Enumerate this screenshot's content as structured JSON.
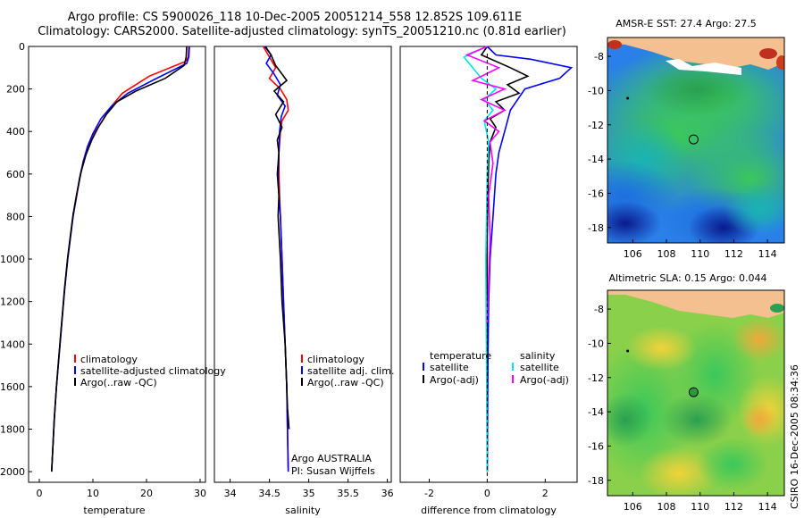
{
  "title": {
    "line1": "Argo profile: CS 5900026_118 10-Dec-2005 20051214_558 12.852S 109.611E",
    "line2": "Climatology: CARS2000. Satellite-adjusted climatology: synTS_20051210.nc (0.81d earlier)"
  },
  "side_label": "CSIRO 16-Dec-2005 08:34:36",
  "colors": {
    "climatology": "#ff0000",
    "satellite": "#0000ff",
    "argo": "#000000",
    "sal_satellite": "#00e5ee",
    "sal_argo": "#ff00ff",
    "land": "#f5c090"
  },
  "chart_data": [
    {
      "type": "line",
      "panel": "temperature",
      "xlabel": "temperature",
      "ylabel": "",
      "xlim": [
        -2,
        31
      ],
      "ylim": [
        0,
        2050
      ],
      "y_reversed": true,
      "xticks": [
        "0",
        "10",
        "20",
        "30"
      ],
      "xtick_values": [
        0,
        10,
        20,
        30
      ],
      "yticks": [
        "0",
        "200",
        "400",
        "600",
        "800",
        "1000",
        "1200",
        "1400",
        "1600",
        "1800",
        "2000"
      ],
      "ytick_values": [
        0,
        200,
        400,
        600,
        800,
        1000,
        1200,
        1400,
        1600,
        1800,
        2000
      ],
      "series": [
        {
          "name": "climatology",
          "color_key": "climatology",
          "x": [
            27.9,
            27.8,
            27.3,
            20.5,
            15.5,
            13.5,
            12,
            10.5,
            9.5,
            8.5,
            7.7,
            7,
            6.3,
            5.8,
            5.3,
            4.7,
            4.2,
            3.7,
            3.2,
            2.8,
            2.5,
            2.3
          ],
          "y": [
            0,
            50,
            70,
            140,
            220,
            280,
            340,
            400,
            450,
            520,
            600,
            700,
            800,
            900,
            1000,
            1150,
            1300,
            1450,
            1600,
            1750,
            1900,
            2000
          ]
        },
        {
          "name": "satellite-adjusted climatology",
          "color_key": "satellite",
          "x": [
            28.0,
            27.9,
            27.5,
            21.5,
            16.5,
            13.5,
            11.5,
            10,
            9,
            8.2,
            7.5,
            6.9,
            6.3,
            5.8,
            5.3,
            4.7,
            4.2,
            3.7,
            3.2,
            2.8,
            2.5,
            2.3
          ],
          "y": [
            0,
            50,
            80,
            155,
            220,
            280,
            340,
            410,
            470,
            540,
            620,
            710,
            800,
            900,
            1000,
            1150,
            1300,
            1450,
            1600,
            1750,
            1900,
            2000
          ]
        },
        {
          "name": "Argo(..raw -QC)",
          "color_key": "argo",
          "x": [
            27.5,
            27.4,
            27,
            23.5,
            18,
            14.5,
            12.5,
            11,
            9.8,
            8.7,
            7.8,
            7,
            6.3,
            5.8,
            5.3,
            4.7,
            4.2,
            3.7,
            3.2,
            2.8,
            2.5,
            2.3
          ],
          "y": [
            0,
            50,
            90,
            150,
            210,
            260,
            320,
            380,
            440,
            510,
            590,
            690,
            790,
            890,
            990,
            1140,
            1290,
            1440,
            1600,
            1750,
            1900,
            2000
          ]
        }
      ],
      "legend": [
        "climatology",
        "satellite-adjusted climatology",
        "Argo(..raw -QC)"
      ],
      "legend_position": "lower-center"
    },
    {
      "type": "line",
      "panel": "salinity",
      "xlabel": "salinity",
      "xlim": [
        33.8,
        36.05
      ],
      "ylim": [
        0,
        2050
      ],
      "y_reversed": true,
      "xticks": [
        "34",
        "34.5",
        "35",
        "35.5",
        "36"
      ],
      "xtick_values": [
        34,
        34.5,
        35,
        35.5,
        36
      ],
      "series": [
        {
          "name": "climatology",
          "color_key": "climatology",
          "x": [
            34.42,
            34.5,
            34.58,
            34.5,
            34.64,
            34.72,
            34.74,
            34.66,
            34.64,
            34.62,
            34.62,
            34.63,
            34.64,
            34.66,
            34.68,
            34.7,
            34.72,
            34.73,
            34.74
          ],
          "y": [
            0,
            50,
            100,
            150,
            200,
            250,
            300,
            350,
            400,
            500,
            600,
            700,
            800,
            1000,
            1200,
            1400,
            1600,
            1800,
            2000
          ]
        },
        {
          "name": "satellite adj. clim.",
          "color_key": "satellite",
          "x": [
            34.44,
            34.52,
            34.46,
            34.56,
            34.64,
            34.6,
            34.7,
            34.65,
            34.63,
            34.62,
            34.61,
            34.62,
            34.64,
            34.66,
            34.68,
            34.7,
            34.72,
            34.73,
            34.74
          ],
          "y": [
            0,
            40,
            80,
            130,
            180,
            230,
            280,
            330,
            400,
            500,
            600,
            700,
            800,
            1000,
            1200,
            1400,
            1600,
            1800,
            2000
          ]
        },
        {
          "name": "Argo(..raw -QC)",
          "color_key": "argo",
          "x": [
            34.45,
            34.52,
            34.58,
            34.72,
            34.56,
            34.68,
            34.58,
            34.66,
            34.6,
            34.62,
            34.6,
            34.62,
            34.61,
            34.64,
            34.66,
            34.7,
            34.72,
            34.73,
            34.75
          ],
          "y": [
            0,
            40,
            90,
            160,
            210,
            260,
            320,
            380,
            440,
            500,
            600,
            700,
            800,
            1000,
            1200,
            1400,
            1600,
            1700,
            1800
          ]
        }
      ],
      "legend": [
        "climatology",
        "satellite adj. clim.",
        "Argo(..raw -QC)"
      ],
      "legend_position": "lower-center",
      "annotation": [
        "Argo AUSTRALIA",
        "PI: Susan Wijffels"
      ]
    },
    {
      "type": "line",
      "panel": "difference",
      "xlabel": "difference from climatology",
      "xlim": [
        -3,
        3.1
      ],
      "ylim": [
        0,
        2050
      ],
      "y_reversed": true,
      "xticks": [
        "-2",
        "0",
        "2"
      ],
      "xtick_values": [
        -2,
        0,
        2
      ],
      "series": [
        {
          "name": "temperature satellite",
          "color_key": "satellite",
          "x": [
            0,
            0.3,
            1.5,
            2.9,
            2.5,
            1.3,
            0.8,
            0.6,
            0.4,
            0.3,
            0.25,
            0.2,
            0.15,
            0.1,
            0.05,
            0.03,
            0.02,
            0
          ],
          "y": [
            0,
            40,
            60,
            100,
            150,
            200,
            300,
            400,
            500,
            600,
            700,
            800,
            900,
            1000,
            1200,
            1400,
            1600,
            2000
          ]
        },
        {
          "name": "temperature Argo(-adj)",
          "color_key": "argo",
          "x": [
            0,
            -0.2,
            0.8,
            1.4,
            0.7,
            1.1,
            0.3,
            0.6,
            0.1,
            0.3,
            0.1,
            0.05,
            0.02,
            0,
            -0.01,
            0
          ],
          "y": [
            0,
            40,
            100,
            140,
            180,
            220,
            260,
            300,
            340,
            380,
            450,
            550,
            700,
            900,
            1400,
            2000
          ]
        },
        {
          "name": "salinity satellite",
          "color_key": "sal_satellite",
          "x": [
            0,
            -0.8,
            -0.5,
            -0.2,
            0.3,
            -0.1,
            0.2,
            -0.1,
            0.05,
            0,
            -0.05,
            0
          ],
          "y": [
            0,
            50,
            100,
            150,
            200,
            250,
            300,
            350,
            450,
            600,
            1000,
            2000
          ]
        },
        {
          "name": "salinity Argo(-adj)",
          "color_key": "sal_argo",
          "x": [
            0,
            -0.7,
            0.4,
            -0.5,
            0.6,
            -0.2,
            0.6,
            -0.1,
            0.4,
            0.1,
            0.2,
            0.05,
            0.1,
            0
          ],
          "y": [
            0,
            40,
            100,
            160,
            200,
            250,
            300,
            350,
            400,
            450,
            550,
            700,
            900,
            1300
          ]
        }
      ],
      "legend_headers": [
        "temperature",
        "salinity"
      ],
      "legend": [
        "satellite",
        "Argo(-adj)",
        "satellite",
        "Argo(-adj)"
      ],
      "legend_position": "lower-center"
    },
    {
      "type": "heatmap",
      "panel": "sst_map",
      "title": "AMSR-E SST: 27.4 Argo: 27.5",
      "xlim": [
        104.5,
        115
      ],
      "ylim": [
        -18.9,
        -6.9
      ],
      "xticks": [
        "106",
        "108",
        "110",
        "112",
        "114"
      ],
      "xtick_values": [
        106,
        108,
        110,
        112,
        114
      ],
      "yticks": [
        "-8",
        "-10",
        "-12",
        "-14",
        "-16",
        "-18"
      ],
      "ytick_values": [
        -8,
        -10,
        -12,
        -14,
        -16,
        -18
      ],
      "float_position": {
        "lon": 109.611,
        "lat": -12.852
      }
    },
    {
      "type": "heatmap",
      "panel": "sla_map",
      "title": "Altimetric SLA: 0.15 Argo: 0.044",
      "xlim": [
        104.5,
        115
      ],
      "ylim": [
        -18.9,
        -6.9
      ],
      "xticks": [
        "106",
        "108",
        "110",
        "112",
        "114"
      ],
      "xtick_values": [
        106,
        108,
        110,
        112,
        114
      ],
      "yticks": [
        "-8",
        "-10",
        "-12",
        "-14",
        "-16",
        "-18"
      ],
      "ytick_values": [
        -8,
        -10,
        -12,
        -14,
        -16,
        -18
      ],
      "float_position": {
        "lon": 109.611,
        "lat": -12.852
      }
    }
  ]
}
